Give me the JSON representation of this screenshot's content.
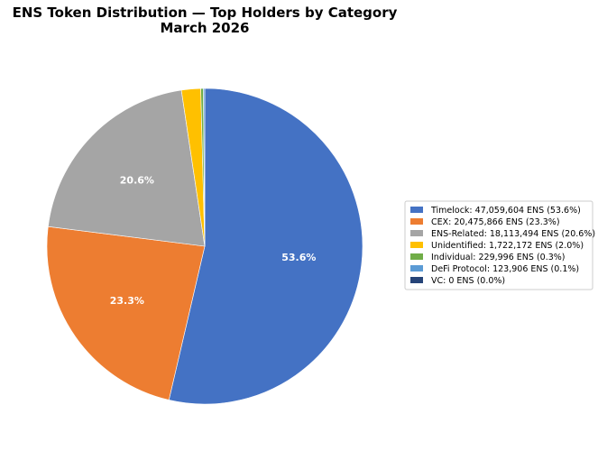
{
  "chart_data": {
    "type": "pie",
    "title": "ENS Token Distribution — Top Holders by Category",
    "subtitle": "March 2026",
    "start_angle_deg": 90,
    "direction": "clockwise",
    "legend_position": "right",
    "slices": [
      {
        "category": "Timelock",
        "value": 47059604,
        "percent": 53.6,
        "legend_label": "Timelock: 47,059,604 ENS (53.6%)",
        "pct_label": "53.6%",
        "color": "#4472c4"
      },
      {
        "category": "CEX",
        "value": 20475866,
        "percent": 23.3,
        "legend_label": "CEX: 20,475,866 ENS (23.3%)",
        "pct_label": "23.3%",
        "color": "#ed7d31"
      },
      {
        "category": "ENS-Related",
        "value": 18113494,
        "percent": 20.6,
        "legend_label": "ENS-Related: 18,113,494 ENS (20.6%)",
        "pct_label": "20.6%",
        "color": "#a5a5a5"
      },
      {
        "category": "Unidentified",
        "value": 1722172,
        "percent": 2.0,
        "legend_label": "Unidentified: 1,722,172 ENS (2.0%)",
        "pct_label": "",
        "color": "#ffc000"
      },
      {
        "category": "Individual",
        "value": 229996,
        "percent": 0.3,
        "legend_label": "Individual: 229,996 ENS (0.3%)",
        "pct_label": "",
        "color": "#70ad47"
      },
      {
        "category": "DeFi Protocol",
        "value": 123906,
        "percent": 0.1,
        "legend_label": "DeFi Protocol: 123,906 ENS (0.1%)",
        "pct_label": "",
        "color": "#5b9bd5"
      },
      {
        "category": "VC",
        "value": 0,
        "percent": 0.0,
        "legend_label": "VC: 0 ENS (0.0%)",
        "pct_label": "",
        "color": "#264478"
      }
    ]
  }
}
